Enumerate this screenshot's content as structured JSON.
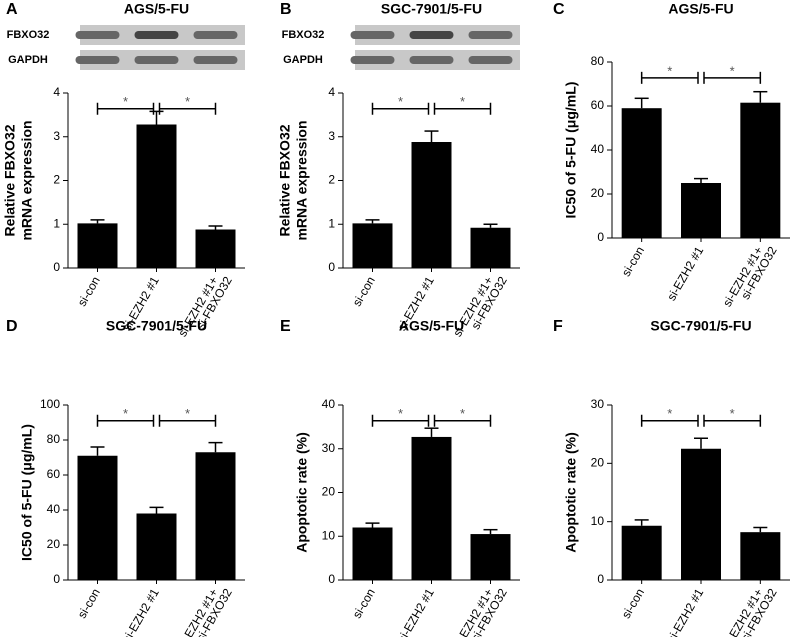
{
  "chart_data": [
    {
      "type": "bar",
      "letter": "A",
      "title": "AGS/5-FU",
      "ylabel": [
        "Relative FBXO32",
        "mRNA expression"
      ],
      "blots": [
        "FBXO32",
        "GAPDH"
      ],
      "categories": [
        [
          "si-con"
        ],
        [
          "si-EZH2 #1"
        ],
        [
          "si-EZH2 #1+",
          "si-FBXO32"
        ]
      ],
      "values": [
        1.02,
        3.28,
        0.88
      ],
      "errors": [
        0.08,
        0.3,
        0.08
      ],
      "color": "#000000",
      "ylim": [
        0,
        4
      ],
      "yticks": [
        0,
        1,
        2,
        3,
        4
      ],
      "significance": [
        {
          "pair": [
            0,
            1
          ],
          "label": "*"
        },
        {
          "pair": [
            1,
            2
          ],
          "label": "*"
        }
      ]
    },
    {
      "type": "bar",
      "letter": "B",
      "title": "SGC-7901/5-FU",
      "ylabel": [
        "Relative FBXO32",
        "mRNA expression"
      ],
      "blots": [
        "FBXO32",
        "GAPDH"
      ],
      "categories": [
        [
          "si-con"
        ],
        [
          "si-EZH2 #1"
        ],
        [
          "si-EZH2 #1+",
          "si-FBXO32"
        ]
      ],
      "values": [
        1.02,
        2.88,
        0.92
      ],
      "errors": [
        0.08,
        0.25,
        0.08
      ],
      "color": "#000000",
      "ylim": [
        0,
        4
      ],
      "yticks": [
        0,
        1,
        2,
        3,
        4
      ],
      "significance": [
        {
          "pair": [
            0,
            1
          ],
          "label": "*"
        },
        {
          "pair": [
            1,
            2
          ],
          "label": "*"
        }
      ]
    },
    {
      "type": "bar",
      "letter": "C",
      "title": "AGS/5-FU",
      "ylabel": [
        "IC50 of 5-FU (μg/mL)"
      ],
      "categories": [
        [
          "si-con"
        ],
        [
          "si-EZH2 #1"
        ],
        [
          "si-EZH2 #1+",
          "si-FBXO32"
        ]
      ],
      "values": [
        59,
        25,
        61.5
      ],
      "errors": [
        4.5,
        2,
        5
      ],
      "color": "#000000",
      "ylim": [
        0,
        80
      ],
      "yticks": [
        0,
        20,
        40,
        60,
        80
      ],
      "significance": [
        {
          "pair": [
            0,
            1
          ],
          "label": "*"
        },
        {
          "pair": [
            1,
            2
          ],
          "label": "*"
        }
      ]
    },
    {
      "type": "bar",
      "letter": "D",
      "title": "SGC-7901/5-FU",
      "ylabel": [
        "IC50 of 5-FU (μg/mL)"
      ],
      "categories": [
        [
          "si-con"
        ],
        [
          "si-EZH2 #1"
        ],
        [
          "si-EZH2 #1+",
          "si-FBXO32"
        ]
      ],
      "values": [
        71,
        38,
        73
      ],
      "errors": [
        5,
        3.5,
        5.5
      ],
      "color": "#000000",
      "ylim": [
        0,
        100
      ],
      "yticks": [
        0,
        20,
        40,
        60,
        80,
        100
      ],
      "significance": [
        {
          "pair": [
            0,
            1
          ],
          "label": "*"
        },
        {
          "pair": [
            1,
            2
          ],
          "label": "*"
        }
      ]
    },
    {
      "type": "bar",
      "letter": "E",
      "title": "AGS/5-FU",
      "ylabel": [
        "Apoptotic rate (%)"
      ],
      "categories": [
        [
          "si-con"
        ],
        [
          "si-EZH2 #1"
        ],
        [
          "si-EZH2 #1+",
          "si-FBXO32"
        ]
      ],
      "values": [
        12,
        32.7,
        10.5
      ],
      "errors": [
        1,
        2,
        1
      ],
      "color": "#000000",
      "ylim": [
        0,
        40
      ],
      "yticks": [
        0,
        10,
        20,
        30,
        40
      ],
      "significance": [
        {
          "pair": [
            0,
            1
          ],
          "label": "*"
        },
        {
          "pair": [
            1,
            2
          ],
          "label": "*"
        }
      ]
    },
    {
      "type": "bar",
      "letter": "F",
      "title": "SGC-7901/5-FU",
      "ylabel": [
        "Apoptotic rate (%)"
      ],
      "categories": [
        [
          "si-con"
        ],
        [
          "si-EZH2 #1"
        ],
        [
          "si-EZH2 #1+",
          "si-FBXO32"
        ]
      ],
      "values": [
        9.3,
        22.5,
        8.2
      ],
      "errors": [
        1,
        1.8,
        0.8
      ],
      "color": "#000000",
      "ylim": [
        0,
        30
      ],
      "yticks": [
        0,
        10,
        20,
        30
      ],
      "significance": [
        {
          "pair": [
            0,
            1
          ],
          "label": "*"
        },
        {
          "pair": [
            1,
            2
          ],
          "label": "*"
        }
      ]
    }
  ]
}
